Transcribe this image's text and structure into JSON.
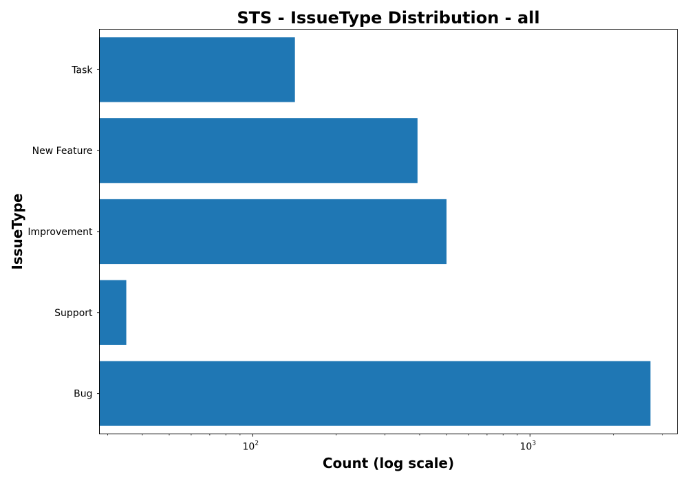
{
  "chart_data": {
    "type": "bar",
    "orientation": "horizontal",
    "title": "STS - IssueType Distribution - all",
    "xlabel": "Count (log scale)",
    "ylabel": "IssueType",
    "x_scale": "log",
    "xlim": [
      28,
      3400
    ],
    "categories": [
      "Bug",
      "Support",
      "Improvement",
      "New Feature",
      "Task"
    ],
    "values": [
      2720,
      35,
      500,
      393,
      142
    ],
    "x_ticks": [
      {
        "base": "10",
        "exp": "2",
        "value": 100
      },
      {
        "base": "10",
        "exp": "3",
        "value": 1000
      }
    ],
    "bar_color": "#1f77b4",
    "grid": false,
    "legend": "none"
  }
}
